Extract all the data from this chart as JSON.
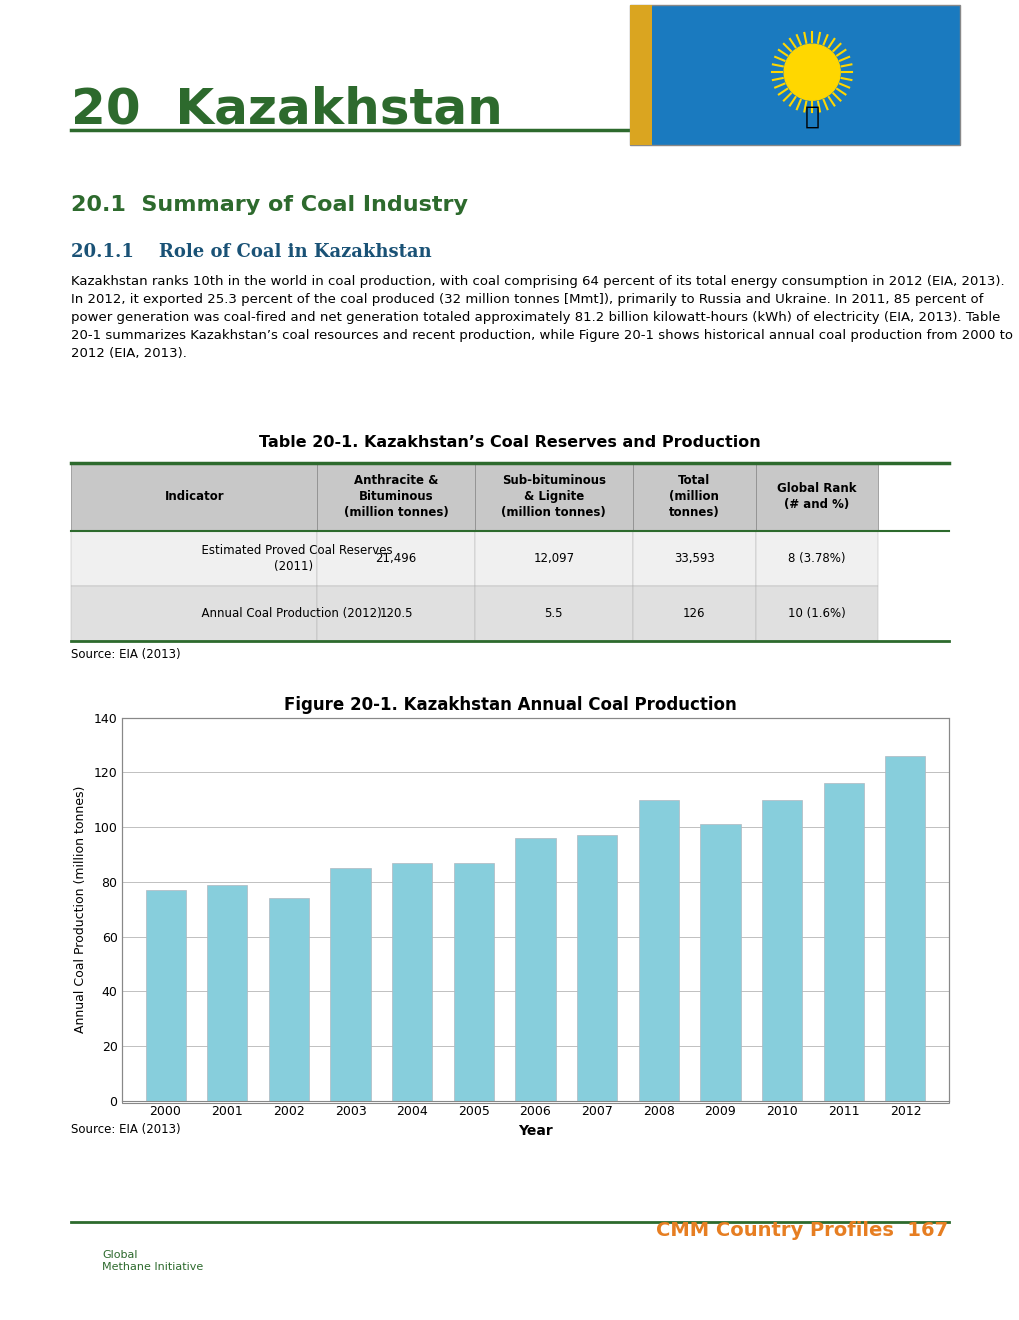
{
  "chapter_number": "20",
  "country": "Kazakhstan",
  "title_color": "#2d6a2d",
  "title_fontsize": 36,
  "section_title": "20.1  Summary of Coal Industry",
  "section_title_color": "#2d6a2d",
  "subsection_title": "20.1.1    Role of Coal in Kazakhstan",
  "subsection_title_color": "#1a5276",
  "body_text": "Kazakhstan ranks 10th in the world in coal production, with coal comprising 64 percent of its total energy consumption in 2012 (EIA, 2013). In 2012, it exported 25.3 percent of the coal produced (32 million tonnes [Mmt]), primarily to Russia and Ukraine. In 2011, 85 percent of power generation was coal-fired and net generation totaled approximately 81.2 billion kilowatt-hours (kWh) of electricity (EIA, 2013). Table 20-1 summarizes Kazakhstan’s coal resources and recent production, while Figure 20-1 shows historical annual coal production from 2000 to 2012 (EIA, 2013).",
  "table_title": "Table 20-1. Kazakhstan’s Coal Reserves and Production",
  "table_headers": [
    "Indicator",
    "Anthracite &\nBituminous\n(million tonnes)",
    "Sub-bituminous\n& Lignite\n(million tonnes)",
    "Total\n(million\ntonnes)",
    "Global Rank\n(# and %)"
  ],
  "table_rows": [
    [
      "Estimated Proved Coal Reserves\n(2011)",
      "21,496",
      "12,097",
      "33,593",
      "8 (3.78%)"
    ],
    [
      "Annual Coal Production (2012)",
      "120.5",
      "5.5",
      "126",
      "10 (1.6%)"
    ]
  ],
  "table_source": "Source: EIA (2013)",
  "figure_title": "Figure 20-1. Kazakhstan Annual Coal Production",
  "bar_years": [
    2000,
    2001,
    2002,
    2003,
    2004,
    2005,
    2006,
    2007,
    2008,
    2009,
    2010,
    2011,
    2012
  ],
  "bar_values": [
    77,
    79,
    74,
    85,
    87,
    87,
    96,
    97,
    110,
    101,
    110,
    116,
    126
  ],
  "bar_color": "#87CEDC",
  "ylabel": "Annual Coal Production (million tonnes)",
  "xlabel": "Year",
  "ylim": [
    0,
    140
  ],
  "yticks": [
    0,
    20,
    40,
    60,
    80,
    100,
    120,
    140
  ],
  "figure_source": "Source: EIA (2013)",
  "footer_text": "CMM Country Profiles  167",
  "footer_color": "#E67E22",
  "bg_color": "#ffffff",
  "line_color": "#2d6a2d",
  "flag_bg_color": "#1a7abf",
  "header_bg_color": "#c8c8c8",
  "row_bg_color": "#e8e8e8",
  "table_border_color": "#2d6a2d"
}
